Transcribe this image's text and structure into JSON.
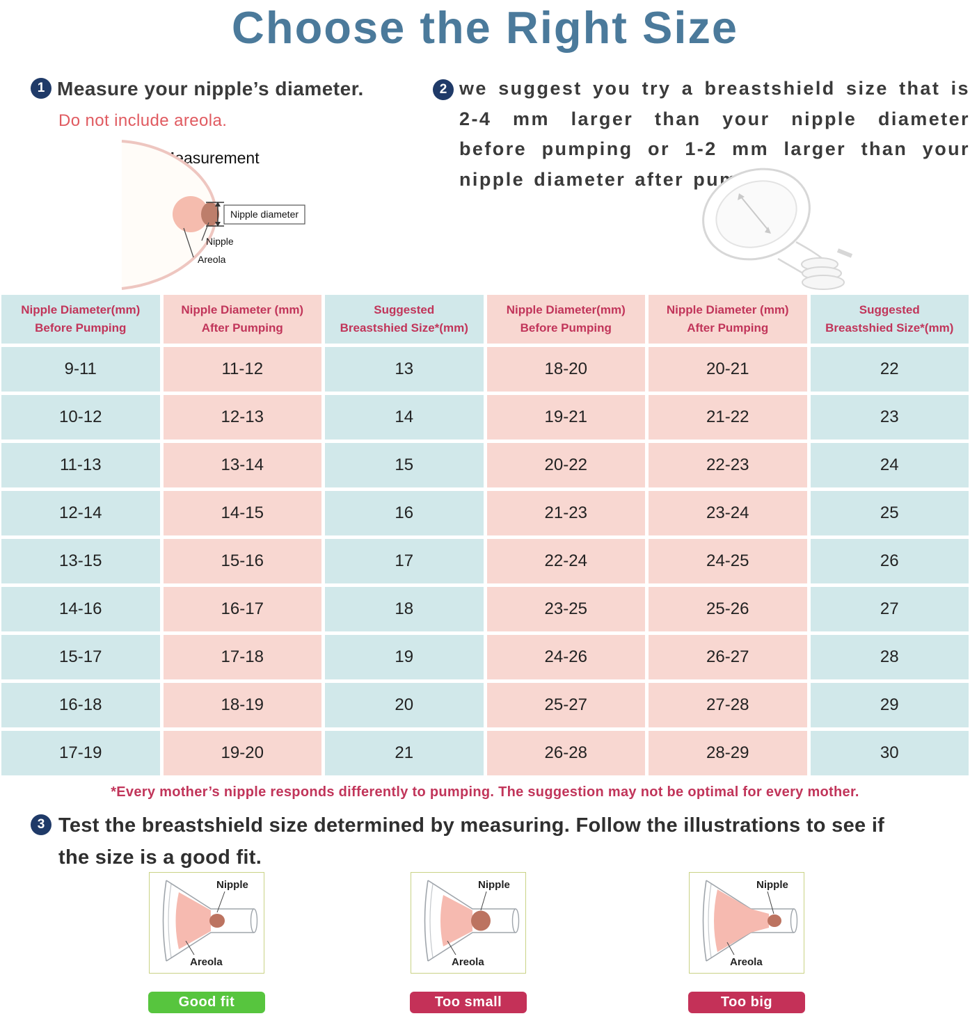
{
  "title": "Choose the Right Size",
  "colors": {
    "title_blue": "#4b7a9b",
    "header_text": "#c1355a",
    "column_teal": "#d1e8ea",
    "column_pink": "#f8d7d1",
    "step_circle": "#1f3a68",
    "warning_red": "#e05a60",
    "footnote_red": "#c1355a",
    "badge_green": "#57c53e",
    "badge_red": "#c43158",
    "fit_box_border": "#c9d285"
  },
  "step1": {
    "number": "1",
    "heading": "Measure your nipple’s diameter.",
    "warning": "Do not include areola.",
    "diagram": {
      "title": "Measurement",
      "labels": {
        "nipple_diameter": "Nipple diameter",
        "nipple": "Nipple",
        "areola": "Areola"
      }
    }
  },
  "step2": {
    "number": "2",
    "text": "we suggest you try a breastshield size that is 2-4 mm larger than your nipple diameter before pumping or 1-2 mm larger than your nipple diameter after pumping"
  },
  "table": {
    "columns": [
      {
        "line1": "Nipple Diameter(mm)",
        "line2": "Before Pumping",
        "color": "teal"
      },
      {
        "line1": "Nipple Diameter (mm)",
        "line2": "After Pumping",
        "color": "pink"
      },
      {
        "line1": "Suggested",
        "line2": "Breastshied Size*(mm)",
        "color": "teal"
      },
      {
        "line1": "Nipple Diameter(mm)",
        "line2": "Before Pumping",
        "color": "pink"
      },
      {
        "line1": "Nipple Diameter (mm)",
        "line2": "After Pumping",
        "color": "pink"
      },
      {
        "line1": "Suggested",
        "line2": "Breastshied Size*(mm)",
        "color": "teal"
      }
    ],
    "rows": [
      [
        "9-11",
        "11-12",
        "13",
        "18-20",
        "20-21",
        "22"
      ],
      [
        "10-12",
        "12-13",
        "14",
        "19-21",
        "21-22",
        "23"
      ],
      [
        "11-13",
        "13-14",
        "15",
        "20-22",
        "22-23",
        "24"
      ],
      [
        "12-14",
        "14-15",
        "16",
        "21-23",
        "23-24",
        "25"
      ],
      [
        "13-15",
        "15-16",
        "17",
        "22-24",
        "24-25",
        "26"
      ],
      [
        "14-16",
        "16-17",
        "18",
        "23-25",
        "25-26",
        "27"
      ],
      [
        "15-17",
        "17-18",
        "19",
        "24-26",
        "26-27",
        "28"
      ],
      [
        "16-18",
        "18-19",
        "20",
        "25-27",
        "27-28",
        "29"
      ],
      [
        "17-19",
        "19-20",
        "21",
        "26-28",
        "28-29",
        "30"
      ]
    ],
    "footnote": "*Every mother’s nipple responds differently to pumping. The suggestion may not be optimal for every mother."
  },
  "step3": {
    "number": "3",
    "text": "Test the breastshield size determined by measuring. Follow the illustrations to see if the size is a good fit."
  },
  "fit_examples": [
    {
      "type": "good",
      "label_nipple": "Nipple",
      "label_areola": "Areola",
      "badge": "Good fit"
    },
    {
      "type": "small",
      "label_nipple": "Nipple",
      "label_areola": "Areola",
      "badge": "Too small"
    },
    {
      "type": "big",
      "label_nipple": "Nipple",
      "label_areola": "Areola",
      "badge": "Too big"
    }
  ]
}
